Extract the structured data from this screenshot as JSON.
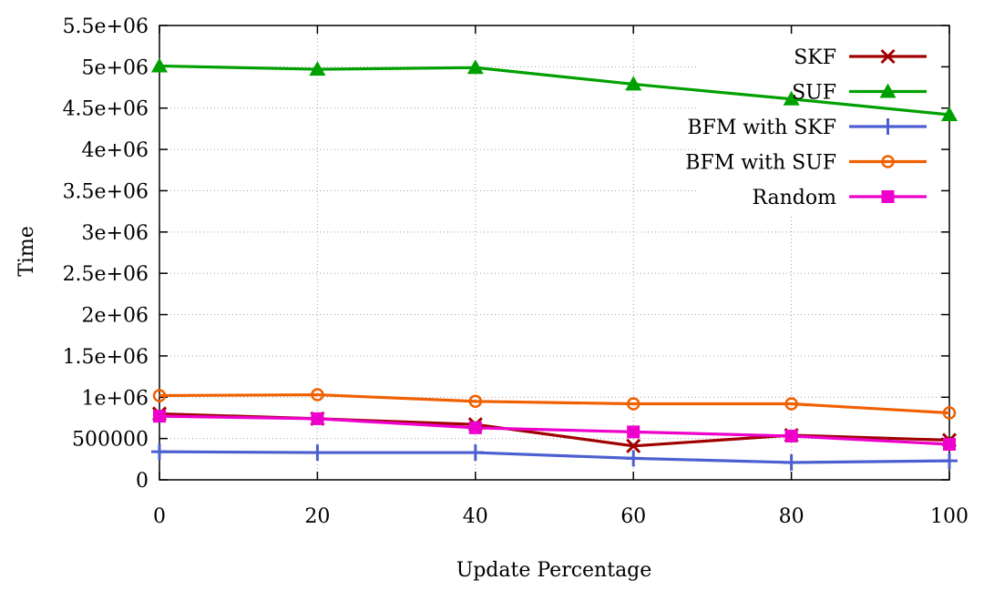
{
  "chart_data": {
    "type": "line",
    "xlabel": "Update Percentage",
    "ylabel": "Time",
    "xlim": [
      0,
      100
    ],
    "ylim": [
      0,
      5500000
    ],
    "x": [
      0,
      20,
      40,
      60,
      80,
      100
    ],
    "xticks": [
      "0",
      "20",
      "40",
      "60",
      "80",
      "100"
    ],
    "yticks": [
      {
        "value": 0,
        "label": "0"
      },
      {
        "value": 500000,
        "label": "500000"
      },
      {
        "value": 1000000,
        "label": "1e+06"
      },
      {
        "value": 1500000,
        "label": "1.5e+06"
      },
      {
        "value": 2000000,
        "label": "2e+06"
      },
      {
        "value": 2500000,
        "label": "2.5e+06"
      },
      {
        "value": 3000000,
        "label": "3e+06"
      },
      {
        "value": 3500000,
        "label": "3.5e+06"
      },
      {
        "value": 4000000,
        "label": "4e+06"
      },
      {
        "value": 4500000,
        "label": "4.5e+06"
      },
      {
        "value": 5000000,
        "label": "5e+06"
      },
      {
        "value": 5500000,
        "label": "5.5e+06"
      }
    ],
    "grid": true,
    "legend_position": "top-right",
    "series": [
      {
        "name": "SKF",
        "color": "#a00000",
        "marker": "cross",
        "values": [
          800000,
          740000,
          670000,
          410000,
          540000,
          480000
        ]
      },
      {
        "name": "SUF",
        "color": "#00a000",
        "marker": "triangle",
        "values": [
          5010000,
          4970000,
          4990000,
          4790000,
          4610000,
          4420000
        ]
      },
      {
        "name": "BFM with SKF",
        "color": "#4c5fd0",
        "marker": "plus",
        "values": [
          340000,
          330000,
          330000,
          260000,
          210000,
          230000
        ]
      },
      {
        "name": "BFM with SUF",
        "color": "#f06000",
        "marker": "circle",
        "values": [
          1020000,
          1030000,
          950000,
          920000,
          920000,
          810000
        ]
      },
      {
        "name": "Random",
        "color": "#ee00cc",
        "marker": "square",
        "values": [
          770000,
          740000,
          630000,
          580000,
          530000,
          430000
        ]
      }
    ]
  }
}
